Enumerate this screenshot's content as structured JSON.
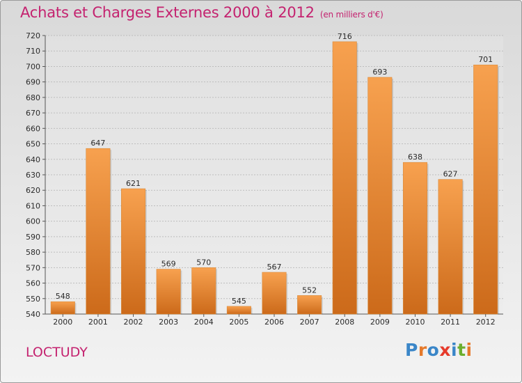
{
  "title": "Achats et Charges Externes 2000 à 2012",
  "subtitle": "(en milliers d'€)",
  "town": "LOCTUDY",
  "logo": {
    "letters": [
      "P",
      "r",
      "o",
      "x",
      "i",
      "t",
      "i"
    ],
    "colors": [
      "#3a86c8",
      "#e5792a",
      "#3a86c8",
      "#e63a2b",
      "#3a86c8",
      "#6cae2e",
      "#e5792a"
    ]
  },
  "colors": {
    "title": "#c4226f",
    "bar_top": "#f7a14f",
    "bar_bottom": "#cc6a1a",
    "grid": "#bdbdbd"
  },
  "chart_data": {
    "type": "bar",
    "categories": [
      "2000",
      "2001",
      "2002",
      "2003",
      "2004",
      "2005",
      "2006",
      "2007",
      "2008",
      "2009",
      "2010",
      "2011",
      "2012"
    ],
    "values": [
      548,
      647,
      621,
      569,
      570,
      545,
      567,
      552,
      716,
      693,
      638,
      627,
      701
    ],
    "ylim": [
      540,
      720
    ],
    "yticks": [
      540,
      550,
      560,
      570,
      580,
      590,
      600,
      610,
      620,
      630,
      640,
      650,
      660,
      670,
      680,
      690,
      700,
      710,
      720
    ],
    "grid": true
  }
}
